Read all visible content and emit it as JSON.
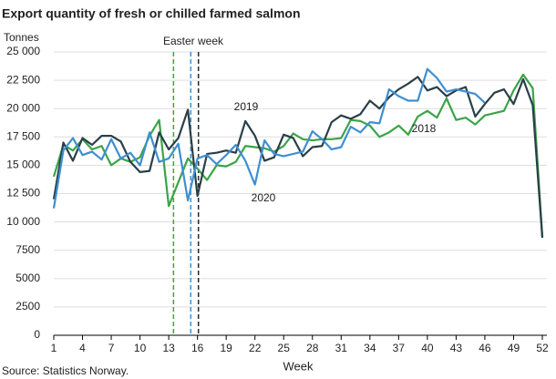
{
  "chart_data": {
    "type": "line",
    "title": "Export quantity of fresh or chilled farmed salmon",
    "y_label": "Tonnes",
    "x_label": "Week",
    "source": "Source: Statistics Norway.",
    "annotation": "Easter week",
    "xlim": [
      1,
      52
    ],
    "xticks": [
      1,
      4,
      7,
      10,
      13,
      16,
      19,
      22,
      25,
      28,
      31,
      34,
      37,
      40,
      43,
      46,
      49,
      52
    ],
    "ylim": [
      0,
      25000
    ],
    "yticks": [
      0,
      {
        "value": 2500,
        "label": "2500"
      },
      {
        "value": 5000,
        "label": "5000"
      },
      {
        "value": 7500,
        "label": "7500"
      },
      {
        "value": 10000,
        "label": "10 000"
      },
      {
        "value": 12500,
        "label": "12 500"
      },
      {
        "value": 15000,
        "label": "15 000"
      },
      {
        "value": 17500,
        "label": "17 500"
      },
      {
        "value": 20000,
        "label": "20 000"
      },
      {
        "value": 22500,
        "label": "22 500"
      },
      {
        "value": 25000,
        "label": "25 000"
      }
    ],
    "grid": true,
    "vlines": [
      {
        "x": 13.5,
        "color": "#3aa447"
      },
      {
        "x": 15.3,
        "color": "#3e8fd1"
      },
      {
        "x": 16.1,
        "color": "#1e2d33"
      }
    ],
    "x": [
      1,
      2,
      3,
      4,
      5,
      6,
      7,
      8,
      9,
      10,
      11,
      12,
      13,
      14,
      15,
      16,
      17,
      18,
      19,
      20,
      21,
      22,
      23,
      24,
      25,
      26,
      27,
      28,
      29,
      30,
      31,
      32,
      33,
      34,
      35,
      36,
      37,
      38,
      39,
      40,
      41,
      42,
      43,
      44,
      45,
      46,
      47,
      48,
      49,
      50,
      51,
      52
    ],
    "series": [
      {
        "name": "2018",
        "color": "#3aa447",
        "values": [
          14000,
          16800,
          16300,
          17300,
          16400,
          16700,
          15000,
          15600,
          15300,
          15700,
          17600,
          19000,
          11400,
          13500,
          15600,
          14700,
          13700,
          15000,
          14900,
          15300,
          16700,
          16600,
          16500,
          16200,
          16700,
          17800,
          17300,
          17200,
          17300,
          17300,
          17400,
          19000,
          18900,
          18500,
          17500,
          17900,
          18500,
          17700,
          19300,
          19800,
          19200,
          20900,
          19000,
          19200,
          18600,
          19400,
          19600,
          19800,
          21600,
          23000,
          21800,
          8700
        ]
      },
      {
        "name": "2019",
        "color": "#2a3f47",
        "values": [
          12000,
          17000,
          15400,
          17400,
          16800,
          17600,
          17600,
          17100,
          15300,
          14400,
          14500,
          17900,
          16400,
          17400,
          19900,
          12300,
          16000,
          16100,
          16300,
          16100,
          18900,
          17600,
          15400,
          15700,
          17700,
          17400,
          15800,
          16600,
          16700,
          18800,
          19400,
          19100,
          19500,
          20700,
          20000,
          21000,
          21700,
          22200,
          22800,
          21600,
          21900,
          21100,
          21600,
          21900,
          19300,
          20400,
          21400,
          21700,
          20400,
          22600,
          20300,
          8600
        ]
      },
      {
        "name": "2020",
        "color": "#3e8fd1",
        "values": [
          11200,
          16300,
          17400,
          15900,
          16200,
          15500,
          17300,
          15600,
          16100,
          15000,
          17900,
          15300,
          15600,
          16900,
          11900,
          15600,
          15900,
          15100,
          15900,
          16800,
          15400,
          13300,
          17200,
          16000,
          15800,
          16000,
          16200,
          18000,
          17300,
          16400,
          16600,
          18400,
          17900,
          18800,
          18700,
          21700,
          21100,
          20700,
          20700,
          23500,
          22700,
          21500,
          21700,
          21500,
          21300,
          20500,
          null,
          null,
          null,
          null,
          null,
          null
        ]
      }
    ]
  }
}
